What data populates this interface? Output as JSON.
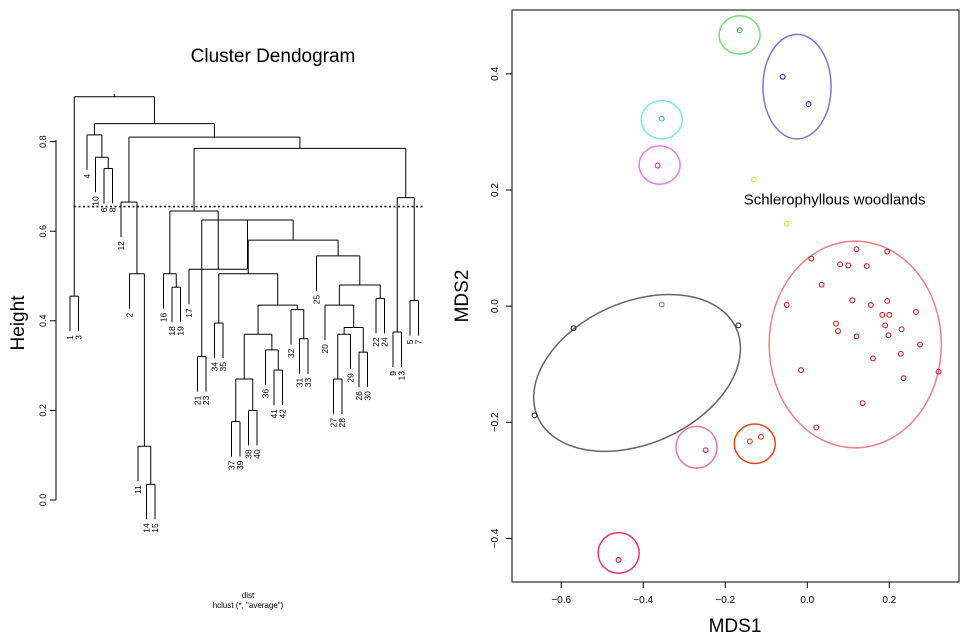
{
  "chart_data": [
    {
      "type": "dendrogram",
      "title": "Cluster Dendogram",
      "ylabel": "Height",
      "sub1": "dist",
      "sub2": "hclust (*, \"average\")",
      "ylim": [
        -0.05,
        0.92
      ],
      "yticks": [
        "0.0",
        "0.2",
        "0.4",
        "0.6",
        "0.8"
      ],
      "cut_height": 0.655,
      "leaf_order": [
        "1",
        "3",
        "4",
        "10",
        "6",
        "8",
        "12",
        "2",
        "11",
        "14",
        "15",
        "16",
        "18",
        "19",
        "17",
        "21",
        "23",
        "34",
        "35",
        "37",
        "39",
        "38",
        "40",
        "36",
        "41",
        "42",
        "32",
        "31",
        "33",
        "25",
        "20",
        "27",
        "28",
        "29",
        "26",
        "30",
        "22",
        "24",
        "9",
        "13",
        "5",
        "7"
      ],
      "merges": [
        [
          "14",
          "15",
          0.035
        ],
        [
          "11",
          "m1",
          0.12
        ],
        [
          "2",
          "m2",
          0.505
        ],
        [
          "12",
          "m3",
          0.665
        ],
        [
          "6",
          "8",
          0.74
        ],
        [
          "10",
          "m5",
          0.765
        ],
        [
          "4",
          "m6",
          0.815
        ],
        [
          "37",
          "39",
          0.175
        ],
        [
          "38",
          "40",
          0.2
        ],
        [
          "m8",
          "m9",
          0.27
        ],
        [
          "41",
          "42",
          0.29
        ],
        [
          "36",
          "m11",
          0.335
        ],
        [
          "m10",
          "m12",
          0.37
        ],
        [
          "31",
          "33",
          0.36
        ],
        [
          "32",
          "m14",
          0.425
        ],
        [
          "m13",
          "m15",
          0.435
        ],
        [
          "34",
          "35",
          0.395
        ],
        [
          "m17",
          "m16",
          0.505
        ],
        [
          "27",
          "28",
          0.27
        ],
        [
          "29",
          "m19",
          0.37
        ],
        [
          "26",
          "30",
          0.33
        ],
        [
          "m20",
          "m21",
          0.385
        ],
        [
          "20",
          "m22",
          0.435
        ],
        [
          "22",
          "24",
          0.45
        ],
        [
          "m23",
          "m24",
          0.48
        ],
        [
          "25",
          "m25",
          0.545
        ],
        [
          "m18",
          "m26",
          0.58
        ],
        [
          "21",
          "23",
          0.32
        ],
        [
          "m28",
          "m27",
          0.625
        ],
        [
          "17",
          "m29",
          0.515
        ],
        [
          "18",
          "19",
          0.475
        ],
        [
          "16",
          "m31",
          0.505
        ],
        [
          "m32",
          "m30",
          0.645
        ],
        [
          "9",
          "13",
          0.375
        ],
        [
          "5",
          "7",
          0.445
        ],
        [
          "m34",
          "m35",
          0.675
        ],
        [
          "m33",
          "m36",
          0.785
        ],
        [
          "m4",
          "m37",
          0.81
        ],
        [
          "m7",
          "m38",
          0.84
        ],
        [
          "1",
          "3",
          0.455
        ],
        [
          "m40",
          "m39",
          0.9
        ]
      ]
    },
    {
      "type": "scatter",
      "xlabel": "MDS1",
      "ylabel": "MDS2",
      "xlim": [
        -0.72,
        0.37
      ],
      "ylim": [
        -0.475,
        0.51
      ],
      "xticks": [
        -0.6,
        -0.4,
        -0.2,
        0.0,
        0.2
      ],
      "xtick_labels": [
        "−0.6",
        "−0.4",
        "−0.2",
        "0.0",
        "0.2"
      ],
      "yticks": [
        -0.4,
        -0.2,
        0.0,
        0.2,
        0.4
      ],
      "ytick_labels": [
        "−0.4",
        "−0.2",
        "0.0",
        "0.2",
        "0.4"
      ],
      "annotation": {
        "text": "Schlerophyllous woodlands",
        "x": -0.155,
        "y": 0.175
      },
      "groups": [
        {
          "color": "#22bb22",
          "points": [
            [
              -0.165,
              0.475
            ]
          ],
          "ellipse": {
            "cx": -0.165,
            "cy": 0.467,
            "rx": 0.05,
            "ry": 0.033,
            "angle": 0,
            "color": "#77dd77"
          }
        },
        {
          "color": "#2222cc",
          "points": [
            [
              -0.06,
              0.395
            ],
            [
              0.003,
              0.348
            ]
          ],
          "ellipse": {
            "cx": -0.025,
            "cy": 0.378,
            "rx": 0.083,
            "ry": 0.09,
            "angle": 0,
            "color": "#7777dd"
          }
        },
        {
          "color": "#22bbbb",
          "points": [
            [
              -0.355,
              0.323
            ]
          ],
          "ellipse": {
            "cx": -0.355,
            "cy": 0.321,
            "rx": 0.05,
            "ry": 0.033,
            "angle": 0,
            "color": "#77ecec"
          }
        },
        {
          "color": "#cc33cc",
          "points": [
            [
              -0.365,
              0.242
            ]
          ],
          "ellipse": {
            "cx": -0.36,
            "cy": 0.243,
            "rx": 0.05,
            "ry": 0.033,
            "angle": 0,
            "color": "#ee77ee"
          }
        },
        {
          "color": "#dddd33",
          "points": [
            [
              -0.13,
              0.218
            ],
            [
              -0.05,
              0.142
            ]
          ],
          "ellipse": null
        },
        {
          "color": "#888888",
          "points": [
            [
              -0.355,
              0.003
            ]
          ],
          "ellipse": null
        },
        {
          "color": "#222222",
          "points": [
            [
              -0.57,
              -0.038
            ],
            [
              -0.168,
              -0.033
            ],
            [
              -0.665,
              -0.188
            ]
          ],
          "ellipse": {
            "cx": -0.415,
            "cy": -0.115,
            "rx": 0.265,
            "ry": 0.122,
            "angle": 24,
            "color": "#666666"
          }
        },
        {
          "color": "#cc2222",
          "points": [
            [
              0.01,
              0.082
            ],
            [
              0.1,
              0.07
            ],
            [
              0.12,
              0.098
            ],
            [
              0.195,
              0.094
            ],
            [
              0.08,
              0.072
            ],
            [
              0.145,
              0.069
            ],
            [
              0.035,
              0.037
            ],
            [
              -0.05,
              0.002
            ],
            [
              0.11,
              0.01
            ],
            [
              0.155,
              0.002
            ],
            [
              0.195,
              0.009
            ],
            [
              0.265,
              -0.01
            ],
            [
              0.183,
              -0.015
            ],
            [
              0.2,
              -0.015
            ],
            [
              0.07,
              -0.03
            ],
            [
              0.19,
              -0.033
            ],
            [
              0.23,
              -0.04
            ],
            [
              0.075,
              -0.043
            ],
            [
              0.12,
              -0.052
            ],
            [
              0.198,
              -0.05
            ],
            [
              0.275,
              -0.066
            ],
            [
              0.16,
              -0.09
            ],
            [
              0.228,
              -0.082
            ],
            [
              -0.015,
              -0.11
            ],
            [
              0.32,
              -0.113
            ],
            [
              0.235,
              -0.124
            ],
            [
              0.135,
              -0.167
            ],
            [
              0.022,
              -0.209
            ]
          ],
          "ellipse": {
            "cx": 0.117,
            "cy": -0.066,
            "rx": 0.21,
            "ry": 0.178,
            "angle": 0,
            "color": "#ee8080"
          }
        },
        {
          "color": "#dd3344",
          "points": [
            [
              -0.248,
              -0.248
            ]
          ],
          "ellipse": {
            "cx": -0.27,
            "cy": -0.243,
            "rx": 0.05,
            "ry": 0.036,
            "angle": 0,
            "color": "#ee7799"
          }
        },
        {
          "color": "#ee3311",
          "points": [
            [
              -0.14,
              -0.233
            ],
            [
              -0.113,
              -0.225
            ]
          ],
          "ellipse": {
            "cx": -0.128,
            "cy": -0.237,
            "rx": 0.05,
            "ry": 0.034,
            "angle": 0,
            "color": "#ee4411"
          }
        },
        {
          "color": "#dd1144",
          "points": [
            [
              -0.46,
              -0.437
            ]
          ],
          "ellipse": {
            "cx": -0.46,
            "cy": -0.425,
            "rx": 0.05,
            "ry": 0.035,
            "angle": 0,
            "color": "#ee3366"
          }
        }
      ]
    }
  ]
}
